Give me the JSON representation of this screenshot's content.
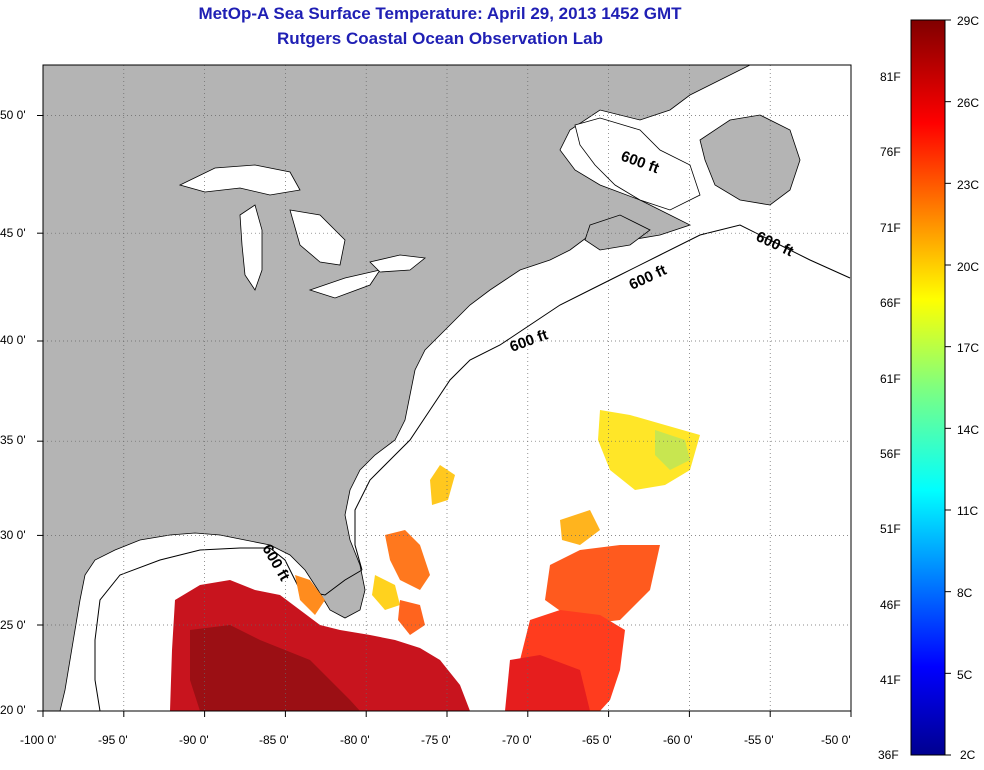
{
  "title": "MetOp-A Sea Surface Temperature:  April 29, 2013 1452 GMT",
  "subtitle": "Rutgers Coastal Ocean Observation Lab",
  "map": {
    "lon_range": [
      -100,
      -50
    ],
    "lat_range": [
      20,
      52
    ],
    "x_ticks": [
      "-100 0'",
      "-95 0'",
      "-90 0'",
      "-85 0'",
      "-80 0'",
      "-75 0'",
      "-70 0'",
      "-65 0'",
      "-60 0'",
      "-55 0'",
      "-50 0'"
    ],
    "y_ticks": [
      "50 0'",
      "45 0'",
      "40 0'",
      "35 0'",
      "30 0'",
      "25 0'",
      "20 0'"
    ],
    "grid": true,
    "land_color": "#b4b4b4",
    "ocean_color": "#ffffff",
    "isobath_labels": [
      "600 ft",
      "600 ft",
      "600 ft",
      "600 ft",
      "600 ft"
    ]
  },
  "colorbar": {
    "celsius_labels": [
      "29C",
      "26C",
      "23C",
      "20C",
      "17C",
      "14C",
      "11C",
      "8C",
      "5C",
      "2C"
    ],
    "fahrenheit_labels": [
      "81F",
      "76F",
      "71F",
      "66F",
      "61F",
      "56F",
      "51F",
      "46F",
      "41F",
      "36F"
    ],
    "colormap": "jet"
  }
}
